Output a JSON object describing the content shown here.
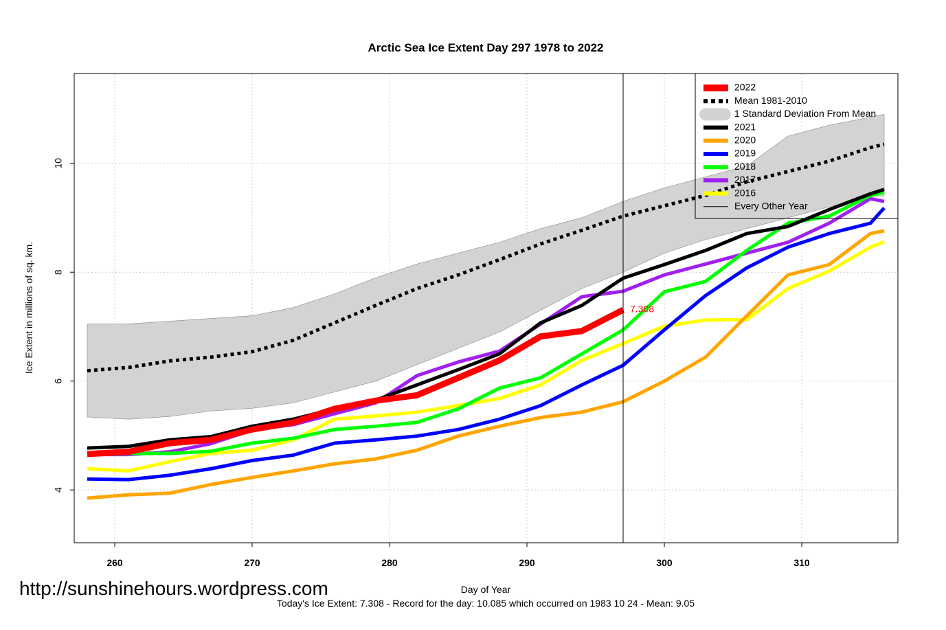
{
  "chart_data": {
    "type": "line",
    "title": "Arctic Sea Ice Extent Day 297 1978 to 2022",
    "x_label": "Day of Year",
    "y_label": "Ice Extent in millions of sq. km.",
    "watermark": "http://sunshinehours.wordpress.com",
    "footnote": "Today's Ice Extent: 7.308  - Record for the day: 10.085 which occurred on 1983 10 24  - Mean: 9.05",
    "thin_lines_label": "Every Other Year",
    "marker_x": 297,
    "legend_position": "top-right",
    "grid": true,
    "xlim": [
      257.05,
      317
    ],
    "ylim": [
      3.03,
      11.65
    ],
    "xticks": [
      260,
      270,
      280,
      290,
      300,
      310
    ],
    "yticks": [
      4,
      6,
      8,
      10
    ],
    "x": [
      258,
      261,
      264,
      267,
      270,
      273,
      276,
      279,
      282,
      285,
      288,
      291,
      294,
      297,
      300,
      303,
      306,
      309,
      312,
      315,
      316
    ],
    "series": [
      {
        "name": "2022",
        "color": "#ff0000",
        "width": 9,
        "label_index": 13,
        "values": [
          4.66,
          4.7,
          4.86,
          4.92,
          5.11,
          5.24,
          5.49,
          5.64,
          5.74,
          6.06,
          6.38,
          6.82,
          6.92,
          7.308,
          null,
          null,
          null,
          null,
          null,
          null,
          null
        ]
      },
      {
        "name": "Mean 1981-2010",
        "color": "#000000",
        "width": 5,
        "dashed": true,
        "values": [
          6.19,
          6.25,
          6.37,
          6.44,
          6.54,
          6.75,
          7.07,
          7.39,
          7.7,
          7.95,
          8.23,
          8.52,
          8.77,
          9.03,
          9.22,
          9.41,
          9.66,
          9.85,
          10.04,
          10.29,
          10.35
        ]
      },
      {
        "name": "1 Standard Deviation From Mean",
        "color": "#d3d3d3",
        "band": true,
        "values": [
          7.05,
          7.05,
          7.1,
          7.15,
          7.2,
          7.35,
          7.6,
          7.9,
          8.15,
          8.35,
          8.55,
          8.8,
          9.0,
          9.3,
          9.55,
          9.75,
          9.95,
          10.5,
          10.7,
          10.85,
          10.9
        ],
        "lower": [
          5.34,
          5.3,
          5.35,
          5.45,
          5.5,
          5.6,
          5.8,
          6.0,
          6.3,
          6.6,
          6.9,
          7.3,
          7.7,
          8.0,
          8.35,
          8.6,
          8.8,
          9.0,
          9.2,
          9.4,
          9.4
        ]
      },
      {
        "name": "2021",
        "color": "#000000",
        "width": 5,
        "values": [
          4.77,
          4.8,
          4.92,
          4.98,
          5.17,
          5.3,
          5.49,
          5.65,
          5.93,
          6.21,
          6.5,
          7.07,
          7.39,
          7.89,
          8.14,
          8.4,
          8.71,
          8.84,
          9.15,
          9.44,
          9.52
        ]
      },
      {
        "name": "2020",
        "color": "#ffa500",
        "width": 5,
        "values": [
          3.85,
          3.91,
          3.94,
          4.1,
          4.23,
          4.35,
          4.48,
          4.57,
          4.73,
          4.99,
          5.17,
          5.33,
          5.43,
          5.62,
          6.0,
          6.44,
          7.2,
          7.95,
          8.14,
          8.71,
          8.76
        ]
      },
      {
        "name": "2019",
        "color": "#0000ff",
        "width": 5,
        "values": [
          4.2,
          4.19,
          4.27,
          4.39,
          4.54,
          4.64,
          4.86,
          4.92,
          4.99,
          5.11,
          5.3,
          5.55,
          5.93,
          6.29,
          6.94,
          7.57,
          8.08,
          8.46,
          8.71,
          8.9,
          9.18
        ]
      },
      {
        "name": "2018",
        "color": "#00ff00",
        "width": 5,
        "values": [
          4.64,
          4.67,
          4.67,
          4.71,
          4.86,
          4.95,
          5.11,
          5.17,
          5.24,
          5.49,
          5.87,
          6.06,
          6.5,
          6.94,
          7.64,
          7.83,
          8.4,
          8.9,
          9.03,
          9.41,
          9.47
        ]
      },
      {
        "name": "2017",
        "color": "#a020f0",
        "width": 5,
        "values": [
          4.65,
          4.65,
          4.7,
          4.85,
          5.1,
          5.2,
          5.4,
          5.6,
          6.1,
          6.35,
          6.55,
          7.05,
          7.55,
          7.65,
          7.95,
          8.15,
          8.35,
          8.55,
          8.9,
          9.35,
          9.3
        ]
      },
      {
        "name": "2016",
        "color": "#ffff00",
        "width": 5,
        "values": [
          4.39,
          4.35,
          4.52,
          4.67,
          4.73,
          4.92,
          5.3,
          5.36,
          5.43,
          5.55,
          5.68,
          5.93,
          6.38,
          6.69,
          7.01,
          7.12,
          7.13,
          7.7,
          8.02,
          8.46,
          8.56
        ]
      }
    ]
  }
}
